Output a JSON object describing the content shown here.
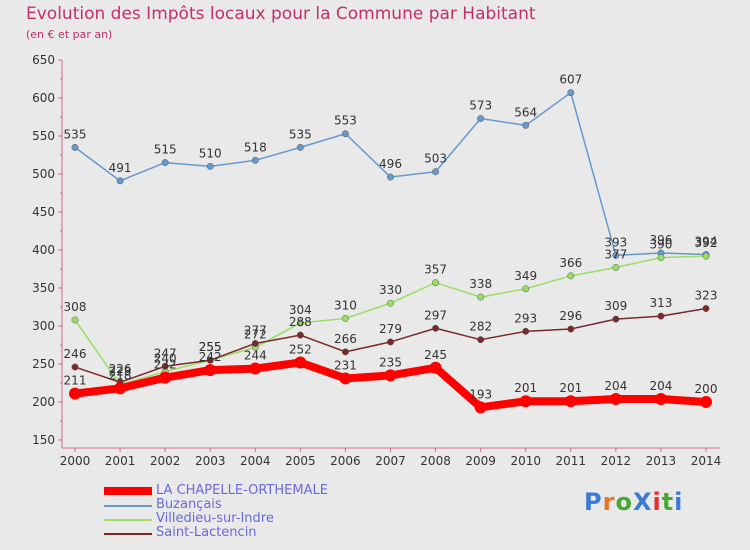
{
  "header": {
    "title": "Evolution des Impôts locaux pour la Commune par Habitant",
    "subtitle": "(en € et par an)"
  },
  "logo": {
    "text": "ProXiti",
    "letter_colors": [
      "#3a7bd5",
      "#e8732a",
      "#4aa832",
      "#3a7bd5",
      "#e03030",
      "#4aa832",
      "#3a7bd5"
    ]
  },
  "chart_data": {
    "type": "line",
    "title": "Evolution des Impôts locaux pour la Commune par Habitant",
    "subtitle": "(en € et par an)",
    "x": [
      "2000",
      "2001",
      "2002",
      "2003",
      "2004",
      "2005",
      "2006",
      "2007",
      "2008",
      "2009",
      "2010",
      "2011",
      "2012",
      "2013",
      "2014"
    ],
    "yticks": [
      150,
      200,
      250,
      300,
      350,
      400,
      450,
      500,
      550,
      600,
      650
    ],
    "ylim": [
      150,
      650
    ],
    "grid": false,
    "legend": "bottom-left",
    "series": [
      {
        "name": "LA CHAPELLE-ORTHEMALE",
        "color": "#ff0000",
        "thick": true,
        "values": [
          211,
          218,
          232,
          242,
          244,
          252,
          231,
          235,
          245,
          193,
          201,
          201,
          204,
          204,
          200
        ],
        "labels": [
          "211",
          "218",
          "232",
          "242",
          "244",
          "252",
          "231",
          "235",
          "245",
          "193",
          "201",
          "201",
          "204",
          "204",
          "200"
        ]
      },
      {
        "name": "Buzançais",
        "color": "#6699cc",
        "values": [
          535,
          491,
          515,
          510,
          518,
          535,
          553,
          496,
          503,
          573,
          564,
          607,
          393,
          396,
          394
        ],
        "labels": [
          "535",
          "491",
          "515",
          "510",
          "518",
          "535",
          "553",
          "496",
          "503",
          "573",
          "564",
          "607",
          "393",
          "396",
          "394"
        ]
      },
      {
        "name": "Villedieu-sur-Indre",
        "color": "#99dd66",
        "values": [
          308,
          223,
          240,
          255,
          272,
          304,
          310,
          330,
          357,
          338,
          349,
          366,
          377,
          390,
          392
        ],
        "labels": [
          "308",
          "223",
          "240",
          "255",
          "272",
          "304",
          "310",
          "330",
          "357",
          "338",
          "349",
          "366",
          "377",
          "390",
          "392"
        ]
      },
      {
        "name": "Saint-Lactencin",
        "color": "#7a2a2a",
        "values": [
          246,
          226,
          247,
          255,
          277,
          288,
          266,
          279,
          297,
          282,
          293,
          296,
          309,
          313,
          323
        ],
        "labels": [
          "246",
          "226",
          "247",
          "255",
          "277",
          "288",
          "266",
          "279",
          "297",
          "282",
          "293",
          "296",
          "309",
          "313",
          "323"
        ]
      }
    ]
  }
}
